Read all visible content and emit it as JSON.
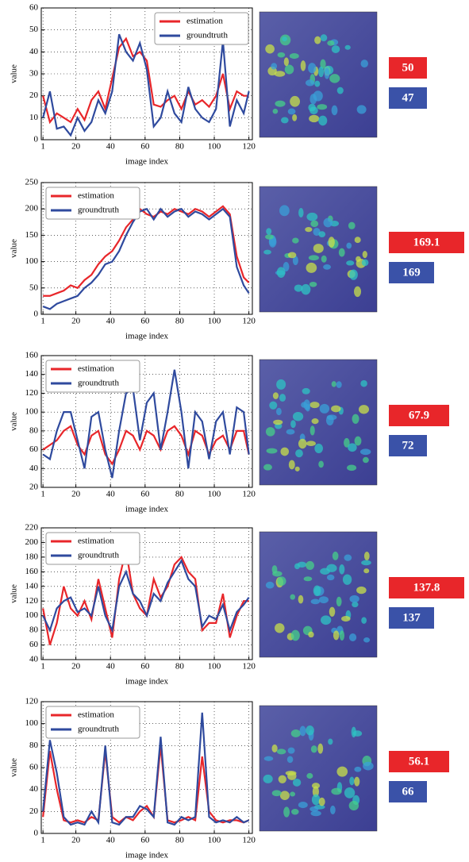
{
  "chart_data": [
    {
      "type": "line",
      "xlabel": "image index",
      "ylabel": "value",
      "legend": "upper right",
      "grid": true,
      "xlim": [
        0,
        122
      ],
      "xticks": [
        1,
        20,
        40,
        60,
        80,
        100,
        120
      ],
      "ylim": [
        0,
        60
      ],
      "yticks": [
        0,
        10,
        20,
        30,
        40,
        50,
        60
      ],
      "x": [
        1,
        5,
        9,
        13,
        17,
        21,
        25,
        29,
        33,
        37,
        41,
        45,
        49,
        53,
        57,
        61,
        65,
        69,
        73,
        77,
        81,
        85,
        89,
        93,
        97,
        101,
        105,
        109,
        113,
        117,
        120
      ],
      "series": [
        {
          "name": "estimation",
          "color": "#e8262a",
          "values": [
            20,
            8,
            12,
            10,
            8,
            14,
            9,
            18,
            22,
            14,
            28,
            42,
            46,
            38,
            40,
            36,
            16,
            15,
            18,
            20,
            14,
            22,
            16,
            18,
            15,
            20,
            30,
            14,
            22,
            20,
            20
          ]
        },
        {
          "name": "groundtruth",
          "color": "#2f4a9e",
          "values": [
            10,
            22,
            5,
            6,
            2,
            10,
            4,
            8,
            18,
            12,
            22,
            48,
            40,
            36,
            44,
            32,
            6,
            10,
            22,
            12,
            8,
            24,
            14,
            10,
            8,
            14,
            45,
            6,
            18,
            12,
            22
          ]
        }
      ],
      "annotations": [
        "50",
        "47"
      ]
    },
    {
      "type": "line",
      "xlabel": "image index",
      "ylabel": "value",
      "legend": "upper left",
      "grid": true,
      "xlim": [
        0,
        122
      ],
      "xticks": [
        1,
        20,
        40,
        60,
        80,
        100,
        120
      ],
      "ylim": [
        0,
        250
      ],
      "yticks": [
        0,
        50,
        100,
        150,
        200,
        250
      ],
      "x": [
        1,
        5,
        9,
        13,
        17,
        21,
        25,
        29,
        33,
        37,
        41,
        45,
        49,
        53,
        57,
        61,
        65,
        69,
        73,
        77,
        81,
        85,
        89,
        93,
        97,
        101,
        105,
        109,
        113,
        117,
        120
      ],
      "series": [
        {
          "name": "estimation",
          "color": "#e8262a",
          "values": [
            35,
            35,
            40,
            45,
            55,
            50,
            65,
            75,
            95,
            110,
            120,
            140,
            165,
            180,
            200,
            190,
            185,
            195,
            190,
            200,
            195,
            190,
            200,
            195,
            185,
            195,
            205,
            190,
            110,
            70,
            60
          ]
        },
        {
          "name": "groundtruth",
          "color": "#2f4a9e",
          "values": [
            15,
            10,
            20,
            25,
            30,
            35,
            50,
            60,
            75,
            95,
            100,
            120,
            150,
            175,
            195,
            200,
            180,
            200,
            185,
            195,
            200,
            185,
            195,
            190,
            180,
            190,
            200,
            185,
            90,
            55,
            40
          ]
        }
      ],
      "annotations": [
        "169.1",
        "169"
      ]
    },
    {
      "type": "line",
      "xlabel": "image index",
      "ylabel": "value",
      "legend": "upper left",
      "grid": true,
      "xlim": [
        0,
        122
      ],
      "xticks": [
        1,
        20,
        40,
        60,
        80,
        100,
        120
      ],
      "ylim": [
        20,
        160
      ],
      "yticks": [
        20,
        40,
        60,
        80,
        100,
        120,
        140,
        160
      ],
      "x": [
        1,
        5,
        9,
        13,
        17,
        21,
        25,
        29,
        33,
        37,
        41,
        45,
        49,
        53,
        57,
        61,
        65,
        69,
        73,
        77,
        81,
        85,
        89,
        93,
        97,
        101,
        105,
        109,
        113,
        117,
        120
      ],
      "series": [
        {
          "name": "estimation",
          "color": "#e8262a",
          "values": [
            60,
            65,
            70,
            80,
            85,
            65,
            55,
            75,
            80,
            55,
            45,
            60,
            80,
            75,
            60,
            80,
            75,
            60,
            80,
            85,
            75,
            55,
            80,
            75,
            55,
            70,
            75,
            60,
            80,
            80,
            55
          ]
        },
        {
          "name": "groundtruth",
          "color": "#2f4a9e",
          "values": [
            55,
            50,
            80,
            100,
            100,
            70,
            40,
            95,
            100,
            60,
            30,
            80,
            120,
            125,
            70,
            110,
            120,
            60,
            100,
            145,
            100,
            40,
            100,
            90,
            50,
            90,
            100,
            55,
            105,
            100,
            55
          ]
        }
      ],
      "annotations": [
        "67.9",
        "72"
      ]
    },
    {
      "type": "line",
      "xlabel": "image index",
      "ylabel": "value",
      "legend": "upper left",
      "grid": true,
      "xlim": [
        0,
        122
      ],
      "xticks": [
        1,
        20,
        40,
        60,
        80,
        100,
        120
      ],
      "ylim": [
        40,
        220
      ],
      "yticks": [
        40,
        60,
        80,
        100,
        120,
        140,
        160,
        180,
        200,
        220
      ],
      "x": [
        1,
        5,
        9,
        13,
        17,
        21,
        25,
        29,
        33,
        37,
        41,
        45,
        49,
        53,
        57,
        61,
        65,
        69,
        73,
        77,
        81,
        85,
        89,
        93,
        97,
        101,
        105,
        109,
        113,
        117,
        120
      ],
      "series": [
        {
          "name": "estimation",
          "color": "#e8262a",
          "values": [
            110,
            60,
            90,
            140,
            110,
            100,
            120,
            95,
            150,
            110,
            70,
            150,
            190,
            130,
            110,
            100,
            150,
            125,
            140,
            170,
            180,
            160,
            150,
            80,
            90,
            90,
            130,
            70,
            100,
            120,
            120
          ]
        },
        {
          "name": "groundtruth",
          "color": "#2f4a9e",
          "values": [
            100,
            80,
            110,
            120,
            125,
            105,
            110,
            100,
            140,
            100,
            80,
            140,
            160,
            130,
            120,
            100,
            130,
            120,
            145,
            160,
            175,
            150,
            140,
            85,
            100,
            95,
            115,
            80,
            105,
            115,
            125
          ]
        }
      ],
      "annotations": [
        "137.8",
        "137"
      ]
    },
    {
      "type": "line",
      "xlabel": "image index",
      "ylabel": "value",
      "legend": "upper left",
      "grid": true,
      "xlim": [
        0,
        122
      ],
      "xticks": [
        1,
        20,
        40,
        60,
        80,
        100,
        120
      ],
      "ylim": [
        0,
        120
      ],
      "yticks": [
        0,
        20,
        40,
        60,
        80,
        100,
        120
      ],
      "x": [
        1,
        5,
        9,
        13,
        17,
        21,
        25,
        29,
        33,
        37,
        41,
        45,
        49,
        53,
        57,
        61,
        65,
        69,
        73,
        77,
        81,
        85,
        89,
        93,
        97,
        101,
        105,
        109,
        113,
        117,
        120
      ],
      "series": [
        {
          "name": "estimation",
          "color": "#e8262a",
          "values": [
            15,
            75,
            40,
            12,
            10,
            12,
            10,
            15,
            12,
            75,
            15,
            10,
            15,
            12,
            20,
            25,
            15,
            80,
            12,
            10,
            12,
            15,
            12,
            70,
            20,
            12,
            10,
            12,
            12,
            10,
            12
          ]
        },
        {
          "name": "groundtruth",
          "color": "#2f4a9e",
          "values": [
            20,
            85,
            55,
            15,
            8,
            10,
            8,
            20,
            10,
            80,
            10,
            8,
            15,
            15,
            25,
            22,
            15,
            88,
            10,
            8,
            15,
            12,
            15,
            110,
            15,
            10,
            12,
            10,
            15,
            10,
            12
          ]
        }
      ],
      "annotations": [
        "56.1",
        "66"
      ]
    }
  ]
}
